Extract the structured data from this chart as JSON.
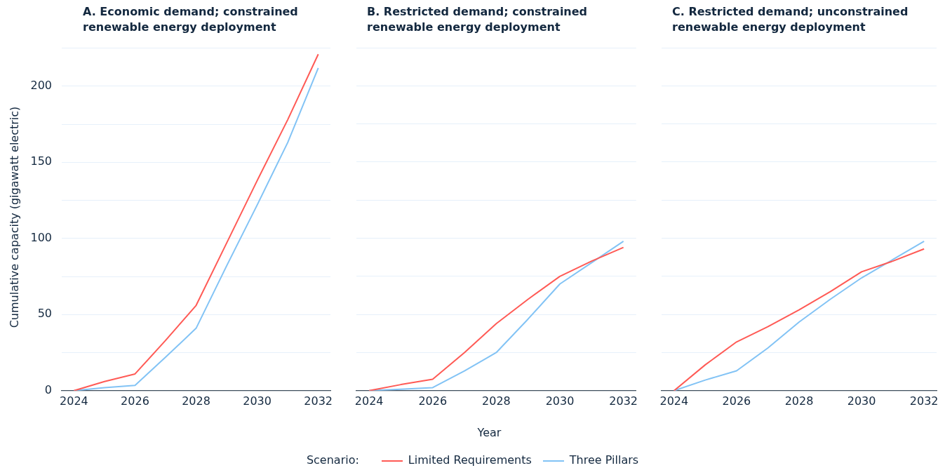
{
  "chart_data": [
    {
      "type": "line",
      "title": "A.  Economic demand; constrained renewable energy deployment",
      "ylabel": "Cumulative capacity (gigawatt electric)",
      "x": [
        2024,
        2025,
        2026,
        2027,
        2028,
        2029,
        2030,
        2031,
        2032
      ],
      "xlim": [
        2023.6,
        2032.4
      ],
      "xticks": [
        2024,
        2026,
        2028,
        2030,
        2032
      ],
      "ylim": [
        0,
        225
      ],
      "yticks": [
        0,
        {
          "value": 25,
          "label": null
        },
        50,
        {
          "value": 75,
          "label": null
        },
        100,
        {
          "value": 125,
          "label": null
        },
        150,
        {
          "value": 175,
          "label": null
        },
        200,
        {
          "value": 225,
          "label": null
        }
      ],
      "grid": "y",
      "legend": false,
      "marker": "none",
      "series": [
        {
          "color": "#ff5a55",
          "values": [
            0,
            6,
            11,
            33,
            56,
            97,
            138,
            178,
            221
          ]
        },
        {
          "color": "#82c3f5",
          "values": [
            0,
            2,
            3.5,
            22,
            41,
            82,
            122,
            163,
            212
          ]
        }
      ]
    },
    {
      "type": "line",
      "title": "B.  Restricted demand; constrained renewable energy deployment",
      "xlabel": "Year",
      "legend_title": "Scenario:",
      "x": [
        2024,
        2025,
        2026,
        2027,
        2028,
        2029,
        2030,
        2031,
        2032
      ],
      "xlim": [
        2023.6,
        2032.4
      ],
      "xticks": [
        2024,
        2026,
        2028,
        2030,
        2032
      ],
      "ylim": [
        0,
        225
      ],
      "yticks": [
        0,
        {
          "value": 25,
          "label": null
        },
        50,
        {
          "value": 75,
          "label": null
        },
        100,
        {
          "value": 125,
          "label": null
        },
        150,
        {
          "value": 175,
          "label": null
        },
        200,
        {
          "value": 225,
          "label": null
        }
      ],
      "tick_labels": "x",
      "grid": "y",
      "legend": "bottom",
      "marker": "none",
      "series": [
        {
          "name": "Limited Requirements",
          "color": "#ff5a55",
          "values": [
            0,
            4,
            7.5,
            25,
            44,
            60,
            75,
            85,
            94
          ]
        },
        {
          "name": "Three Pillars",
          "color": "#82c3f5",
          "values": [
            0,
            1,
            2,
            13,
            25,
            47,
            70,
            84,
            98
          ]
        }
      ]
    },
    {
      "type": "line",
      "title": "C.  Restricted demand; unconstrained renewable energy deployment",
      "x": [
        2024,
        2025,
        2026,
        2027,
        2028,
        2029,
        2030,
        2031,
        2032
      ],
      "xlim": [
        2023.6,
        2032.4
      ],
      "xticks": [
        2024,
        2026,
        2028,
        2030,
        2032
      ],
      "ylim": [
        0,
        225
      ],
      "yticks": [
        0,
        {
          "value": 25,
          "label": null
        },
        50,
        {
          "value": 75,
          "label": null
        },
        100,
        {
          "value": 125,
          "label": null
        },
        150,
        {
          "value": 175,
          "label": null
        },
        200,
        {
          "value": 225,
          "label": null
        }
      ],
      "tick_labels": "x",
      "grid": "y",
      "legend": false,
      "marker": "none",
      "series": [
        {
          "color": "#ff5a55",
          "values": [
            0,
            17,
            32,
            42,
            53,
            65,
            78,
            85,
            93
          ]
        },
        {
          "color": "#82c3f5",
          "values": [
            0,
            7,
            13,
            28,
            45,
            60,
            74,
            86,
            98
          ]
        }
      ]
    }
  ]
}
